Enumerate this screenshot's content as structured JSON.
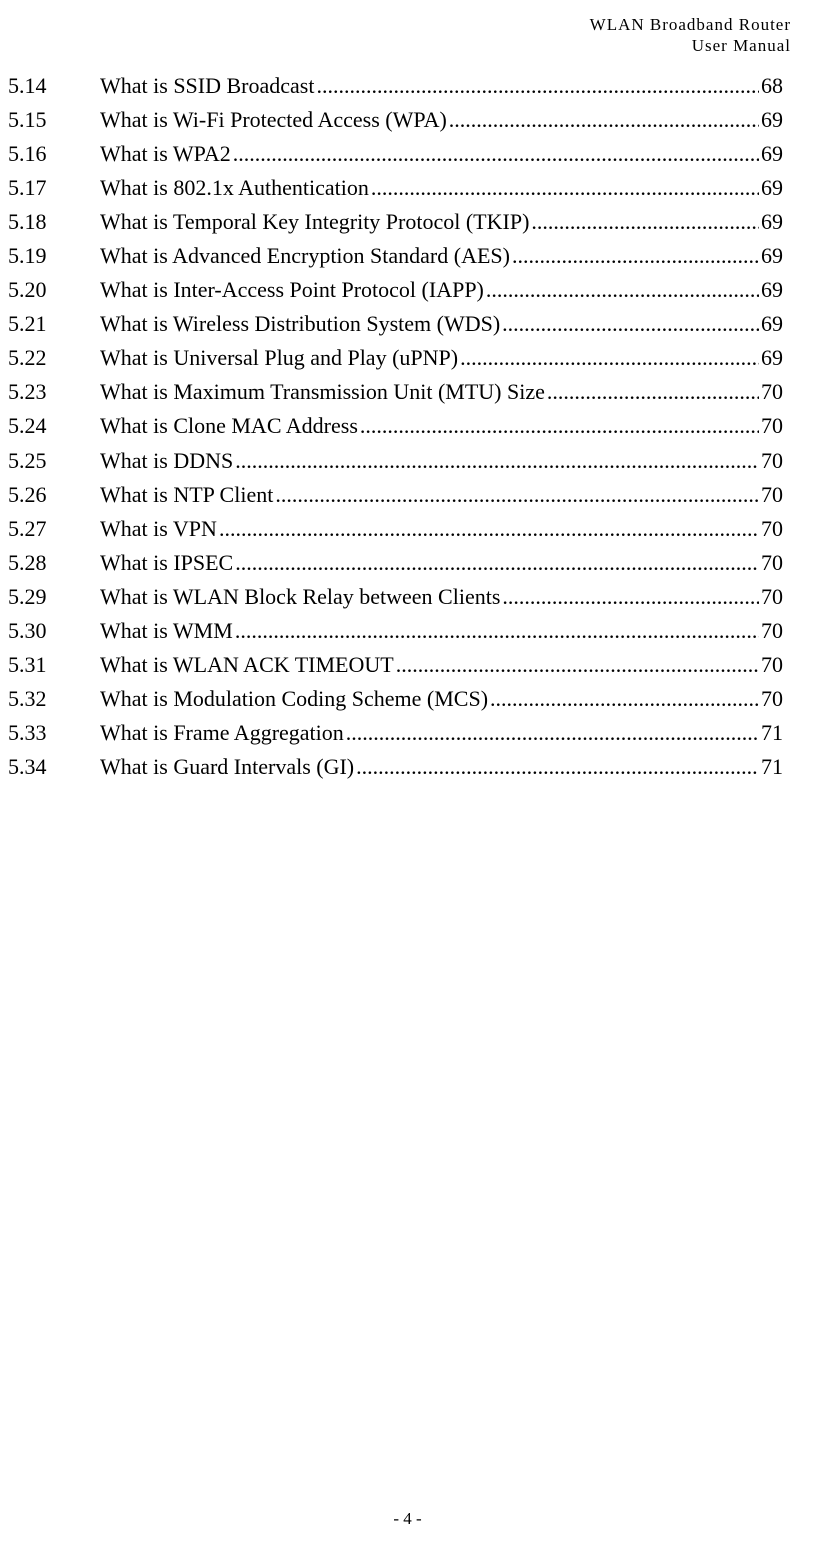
{
  "header": {
    "line1": "WLAN  Broadband  Router",
    "line2": "User  Manual"
  },
  "toc": {
    "entries": [
      {
        "num": "5.14",
        "title": "What is SSID Broadcast ",
        "page": "68"
      },
      {
        "num": "5.15",
        "title": "What is Wi-Fi Protected Access (WPA) ",
        "page": "69"
      },
      {
        "num": "5.16",
        "title": "What is WPA2 ",
        "page": "69"
      },
      {
        "num": "5.17",
        "title": "What is 802.1x Authentication ",
        "page": "69"
      },
      {
        "num": "5.18",
        "title": "What is Temporal Key Integrity Protocol (TKIP) ",
        "page": "69"
      },
      {
        "num": "5.19",
        "title": "What is Advanced Encryption Standard (AES)  ",
        "page": "69"
      },
      {
        "num": "5.20",
        "title": "What is Inter-Access Point Protocol (IAPP) ",
        "page": "69"
      },
      {
        "num": "5.21",
        "title": "What is Wireless Distribution System (WDS)  ",
        "page": "69"
      },
      {
        "num": "5.22",
        "title": "What is Universal Plug and Play (uPNP) ",
        "page": "69"
      },
      {
        "num": "5.23",
        "title": "What is Maximum Transmission Unit (MTU) Size ",
        "page": "70"
      },
      {
        "num": "5.24",
        "title": "What is Clone MAC Address ",
        "page": "70"
      },
      {
        "num": "5.25",
        "title": "What is DDNS ",
        "page": "70"
      },
      {
        "num": "5.26",
        "title": "What is NTP Client  ",
        "page": "70"
      },
      {
        "num": "5.27",
        "title": "What is VPN  ",
        "page": "70"
      },
      {
        "num": "5.28",
        "title": "What is IPSEC ",
        "page": "70"
      },
      {
        "num": "5.29",
        "title": "What is WLAN Block Relay between Clients ",
        "page": "70"
      },
      {
        "num": "5.30",
        "title": "What is WMM ",
        "page": "70"
      },
      {
        "num": "5.31",
        "title": "What is WLAN ACK TIMEOUT  ",
        "page": "70"
      },
      {
        "num": "5.32",
        "title": "What is Modulation Coding Scheme (MCS)  ",
        "page": "70"
      },
      {
        "num": "5.33",
        "title": "What is Frame Aggregation  ",
        "page": "71"
      },
      {
        "num": "5.34",
        "title": "What is Guard Intervals (GI) ",
        "page": "71"
      }
    ]
  },
  "footer": {
    "page_number": "- 4 -"
  }
}
